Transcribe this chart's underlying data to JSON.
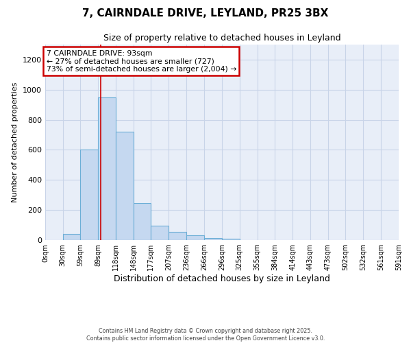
{
  "title": "7, CAIRNDALE DRIVE, LEYLAND, PR25 3BX",
  "subtitle": "Size of property relative to detached houses in Leyland",
  "xlabel": "Distribution of detached houses by size in Leyland",
  "ylabel": "Number of detached properties",
  "footnote1": "Contains HM Land Registry data © Crown copyright and database right 2025.",
  "footnote2": "Contains public sector information licensed under the Open Government Licence v3.0.",
  "bin_edges": [
    0,
    29.5,
    58.5,
    88.5,
    117.5,
    147.5,
    176.5,
    206.5,
    235.5,
    265.5,
    295.5,
    324.5,
    354.5,
    383.5,
    413.5,
    442.5,
    472.5,
    501.5,
    531.5,
    560.5,
    590.5
  ],
  "bar_heights": [
    0,
    40,
    600,
    950,
    720,
    245,
    95,
    55,
    30,
    15,
    8,
    0,
    0,
    0,
    0,
    0,
    0,
    0,
    0,
    0
  ],
  "tick_labels": [
    "0sqm",
    "30sqm",
    "59sqm",
    "89sqm",
    "118sqm",
    "148sqm",
    "177sqm",
    "207sqm",
    "236sqm",
    "266sqm",
    "296sqm",
    "325sqm",
    "355sqm",
    "384sqm",
    "414sqm",
    "443sqm",
    "473sqm",
    "502sqm",
    "532sqm",
    "561sqm",
    "591sqm"
  ],
  "bar_color": "#c5d8f0",
  "bar_edge_color": "#6baed6",
  "grid_color": "#c8d4e8",
  "bg_color": "#e8eef8",
  "red_line_x": 93,
  "annotation_text": "7 CAIRNDALE DRIVE: 93sqm\n← 27% of detached houses are smaller (727)\n73% of semi-detached houses are larger (2,004) →",
  "annotation_box_color": "#ffffff",
  "annotation_edge_color": "#cc0000",
  "ylim": [
    0,
    1300
  ],
  "yticks": [
    0,
    200,
    400,
    600,
    800,
    1000,
    1200
  ],
  "title_fontsize": 11,
  "subtitle_fontsize": 9
}
